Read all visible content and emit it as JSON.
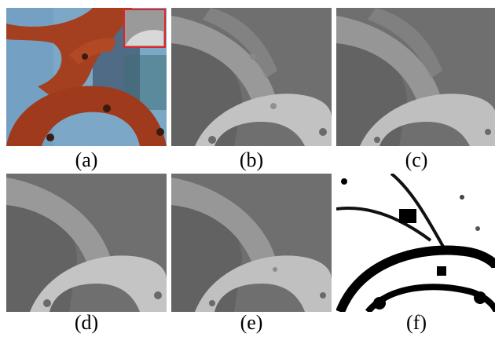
{
  "panels": [
    {
      "label": "(a)",
      "kind": "color-image-with-zoom-inset"
    },
    {
      "label": "(b)",
      "kind": "depth-map"
    },
    {
      "label": "(c)",
      "kind": "depth-map"
    },
    {
      "label": "(d)",
      "kind": "depth-map"
    },
    {
      "label": "(e)",
      "kind": "depth-map"
    },
    {
      "label": "(f)",
      "kind": "error-map"
    }
  ],
  "colors": {
    "background": "#ffffff",
    "depth_bg": "#6f6f6f",
    "depth_left_arch": "#7c7c7c",
    "depth_top_arc": "#999999",
    "depth_bottom_arc": "#c2c2c2",
    "rust": "#a4401f",
    "sky": "#7da7c6",
    "inset_border": "#e0242b"
  }
}
